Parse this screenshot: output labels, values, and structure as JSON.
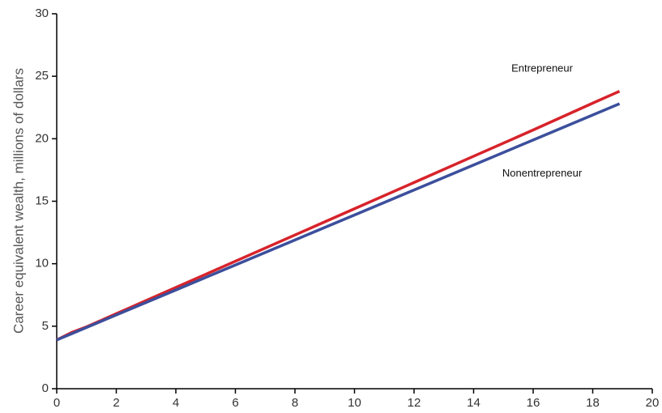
{
  "chart_data": {
    "type": "line",
    "y_label": "Career equivalent wealth, millions of dollars",
    "x": [
      0,
      0.5,
      1,
      2,
      4,
      6,
      8,
      10,
      12,
      14,
      16,
      18,
      18.9
    ],
    "series": [
      {
        "name": "Entrepreneur",
        "color": "#d7232b",
        "values": [
          3.9,
          4.5,
          4.95,
          6.0,
          8.1,
          10.2,
          12.3,
          14.4,
          16.5,
          18.6,
          20.7,
          22.85,
          23.8
        ]
      },
      {
        "name": "Nonentrepreneur",
        "color": "#3c4f9c",
        "values": [
          3.9,
          4.4,
          4.9,
          5.9,
          7.9,
          9.9,
          11.9,
          13.9,
          15.9,
          17.9,
          19.9,
          21.9,
          22.8
        ]
      }
    ],
    "xlim": [
      0,
      20
    ],
    "xticks": [
      0,
      2,
      4,
      6,
      8,
      10,
      12,
      14,
      16,
      18,
      20
    ],
    "ylim": [
      0,
      30
    ],
    "yticks": [
      0,
      5,
      10,
      15,
      20,
      25,
      30
    ],
    "grid": false
  }
}
